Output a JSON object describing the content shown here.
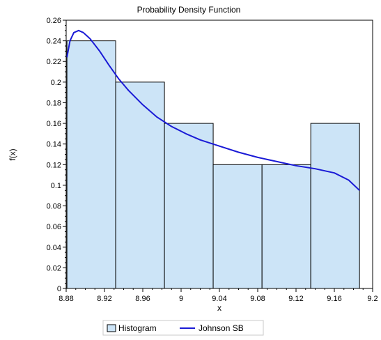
{
  "chart_data": {
    "type": "bar",
    "title": "Probability Density Function",
    "xlabel": "x",
    "ylabel": "f(x)",
    "xlim": [
      8.88,
      9.2
    ],
    "ylim": [
      0,
      0.26
    ],
    "x_ticks": [
      "8.88",
      "8.92",
      "8.96",
      "9",
      "9.04",
      "9.08",
      "9.12",
      "9.16",
      "9.2"
    ],
    "y_ticks": [
      "0",
      "0.02",
      "0.04",
      "0.06",
      "0.08",
      "0.1",
      "0.12",
      "0.14",
      "0.16",
      "0.18",
      "0.2",
      "0.22",
      "0.24",
      "0.26"
    ],
    "histogram": {
      "name": "Histogram",
      "color": "#cce4f7",
      "bins": [
        {
          "from": 8.8808,
          "to": 8.9317,
          "value": 0.24
        },
        {
          "from": 8.9317,
          "to": 8.9826,
          "value": 0.2
        },
        {
          "from": 8.9826,
          "to": 9.0335,
          "value": 0.16
        },
        {
          "from": 9.0335,
          "to": 9.0845,
          "value": 0.12
        },
        {
          "from": 9.0845,
          "to": 9.1354,
          "value": 0.12
        },
        {
          "from": 9.1354,
          "to": 9.1863,
          "value": 0.16
        }
      ]
    },
    "series": [
      {
        "name": "Johnson SB",
        "color": "#1a1ad6",
        "x": [
          8.8808,
          8.884,
          8.888,
          8.893,
          8.898,
          8.905,
          8.915,
          8.925,
          8.935,
          8.945,
          8.96,
          8.975,
          8.99,
          9.005,
          9.02,
          9.04,
          9.06,
          9.08,
          9.1,
          9.12,
          9.14,
          9.16,
          9.175,
          9.1863
        ],
        "y": [
          0.224,
          0.24,
          0.248,
          0.25,
          0.248,
          0.242,
          0.23,
          0.216,
          0.203,
          0.192,
          0.178,
          0.166,
          0.157,
          0.15,
          0.144,
          0.138,
          0.132,
          0.127,
          0.123,
          0.119,
          0.116,
          0.112,
          0.105,
          0.095
        ]
      }
    ],
    "legend": {
      "position": "bottom",
      "entries": [
        "Histogram",
        "Johnson SB"
      ]
    },
    "grid": false
  }
}
